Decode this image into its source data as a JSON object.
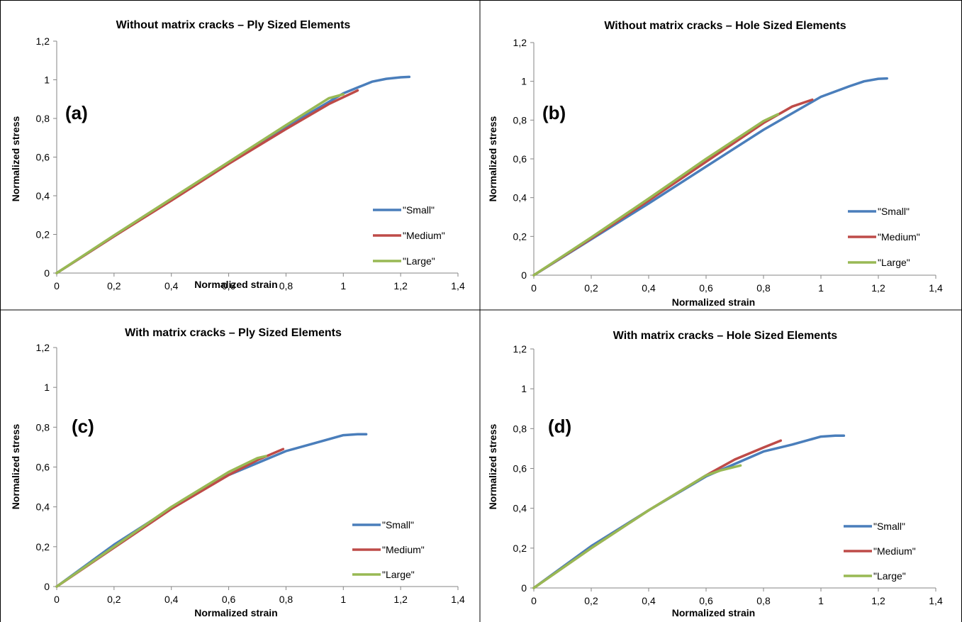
{
  "colors": {
    "Small": "#4A7EBB",
    "Medium": "#BE4B48",
    "Large": "#98B954"
  },
  "chart_data": [
    {
      "type": "line",
      "title": "Without matrix cracks – Ply Sized Elements",
      "panel_label": "(a)",
      "xlabel": "Normalized strain",
      "ylabel": "Normalized stress",
      "xlim": [
        0,
        1.4
      ],
      "ylim": [
        0,
        1.2
      ],
      "xticks": [
        "0",
        "0,2",
        "0,4",
        "0,6",
        "0,8",
        "1",
        "1,2",
        "1,4"
      ],
      "yticks": [
        "0",
        "0,2",
        "0,4",
        "0,6",
        "0,8",
        "1",
        "1,2"
      ],
      "grid": false,
      "legend": "right",
      "series": [
        {
          "name": "\"Small\"",
          "x": [
            0,
            0.2,
            0.4,
            0.6,
            0.8,
            1.0,
            1.05,
            1.1,
            1.15,
            1.2,
            1.23
          ],
          "y": [
            0,
            0.19,
            0.38,
            0.57,
            0.755,
            0.93,
            0.96,
            0.99,
            1.005,
            1.013,
            1.015
          ]
        },
        {
          "name": "\"Medium\"",
          "x": [
            0,
            0.2,
            0.4,
            0.6,
            0.8,
            0.95,
            1.05
          ],
          "y": [
            0,
            0.19,
            0.375,
            0.565,
            0.745,
            0.875,
            0.945
          ]
        },
        {
          "name": "\"Large\"",
          "x": [
            0,
            0.2,
            0.4,
            0.6,
            0.8,
            0.95,
            1.0
          ],
          "y": [
            0,
            0.195,
            0.385,
            0.575,
            0.765,
            0.905,
            0.925
          ]
        }
      ]
    },
    {
      "type": "line",
      "title": "Without matrix cracks – Hole Sized Elements",
      "panel_label": "(b)",
      "xlabel": "Normalized strain",
      "ylabel": "Normalized stress",
      "xlim": [
        0,
        1.4
      ],
      "ylim": [
        0,
        1.2
      ],
      "xticks": [
        "0",
        "0,2",
        "0,4",
        "0,6",
        "0,8",
        "1",
        "1,2",
        "1,4"
      ],
      "yticks": [
        "0",
        "0,2",
        "0,4",
        "0,6",
        "0,8",
        "1",
        "1,2"
      ],
      "grid": false,
      "legend": "right",
      "series": [
        {
          "name": "\"Small\"",
          "x": [
            0,
            0.2,
            0.4,
            0.6,
            0.8,
            1.0,
            1.1,
            1.15,
            1.2,
            1.23
          ],
          "y": [
            0,
            0.185,
            0.37,
            0.56,
            0.75,
            0.92,
            0.975,
            1.0,
            1.013,
            1.015
          ]
        },
        {
          "name": "\"Medium\"",
          "x": [
            0,
            0.2,
            0.4,
            0.6,
            0.8,
            0.9,
            0.97
          ],
          "y": [
            0,
            0.19,
            0.385,
            0.585,
            0.785,
            0.87,
            0.905
          ]
        },
        {
          "name": "\"Large\"",
          "x": [
            0,
            0.2,
            0.4,
            0.6,
            0.8,
            0.85
          ],
          "y": [
            0,
            0.195,
            0.395,
            0.6,
            0.795,
            0.83
          ]
        }
      ]
    },
    {
      "type": "line",
      "title": "With matrix cracks – Ply Sized Elements",
      "panel_label": "(c)",
      "xlabel": "Normalized strain",
      "ylabel": "Normalized stress",
      "xlim": [
        0,
        1.4
      ],
      "ylim": [
        0,
        1.2
      ],
      "xticks": [
        "0",
        "0,2",
        "0,4",
        "0,6",
        "0,8",
        "1",
        "1,2",
        "1,4"
      ],
      "yticks": [
        "0",
        "0,2",
        "0,4",
        "0,6",
        "0,8",
        "1",
        "1,2"
      ],
      "grid": false,
      "legend": "right",
      "series": [
        {
          "name": "\"Small\"",
          "x": [
            0,
            0.2,
            0.4,
            0.6,
            0.8,
            0.9,
            1.0,
            1.05,
            1.08
          ],
          "y": [
            0,
            0.21,
            0.395,
            0.56,
            0.68,
            0.72,
            0.76,
            0.765,
            0.765
          ]
        },
        {
          "name": "\"Medium\"",
          "x": [
            0,
            0.2,
            0.4,
            0.6,
            0.7,
            0.79
          ],
          "y": [
            0,
            0.195,
            0.39,
            0.56,
            0.635,
            0.69
          ]
        },
        {
          "name": "\"Large\"",
          "x": [
            0,
            0.2,
            0.4,
            0.6,
            0.7,
            0.73
          ],
          "y": [
            0,
            0.2,
            0.4,
            0.575,
            0.645,
            0.655
          ]
        }
      ]
    },
    {
      "type": "line",
      "title": "With matrix cracks – Hole Sized Elements",
      "panel_label": "(d)",
      "xlabel": "Normalized strain",
      "ylabel": "Normalized stress",
      "xlim": [
        0,
        1.4
      ],
      "ylim": [
        0,
        1.2
      ],
      "xticks": [
        "0",
        "0,2",
        "0,4",
        "0,6",
        "0,8",
        "1",
        "1,2",
        "1,4"
      ],
      "yticks": [
        "0",
        "0,2",
        "0,4",
        "0,6",
        "0,8",
        "1",
        "1,2"
      ],
      "grid": false,
      "legend": "right",
      "series": [
        {
          "name": "\"Small\"",
          "x": [
            0,
            0.2,
            0.4,
            0.6,
            0.8,
            0.9,
            1.0,
            1.05,
            1.08
          ],
          "y": [
            0,
            0.21,
            0.39,
            0.56,
            0.685,
            0.72,
            0.76,
            0.765,
            0.765
          ]
        },
        {
          "name": "\"Medium\"",
          "x": [
            0,
            0.2,
            0.4,
            0.6,
            0.7,
            0.8,
            0.86
          ],
          "y": [
            0,
            0.2,
            0.39,
            0.565,
            0.645,
            0.705,
            0.74
          ]
        },
        {
          "name": "\"Large\"",
          "x": [
            0,
            0.2,
            0.4,
            0.6,
            0.65,
            0.72
          ],
          "y": [
            0,
            0.2,
            0.39,
            0.565,
            0.59,
            0.615
          ]
        }
      ]
    }
  ]
}
